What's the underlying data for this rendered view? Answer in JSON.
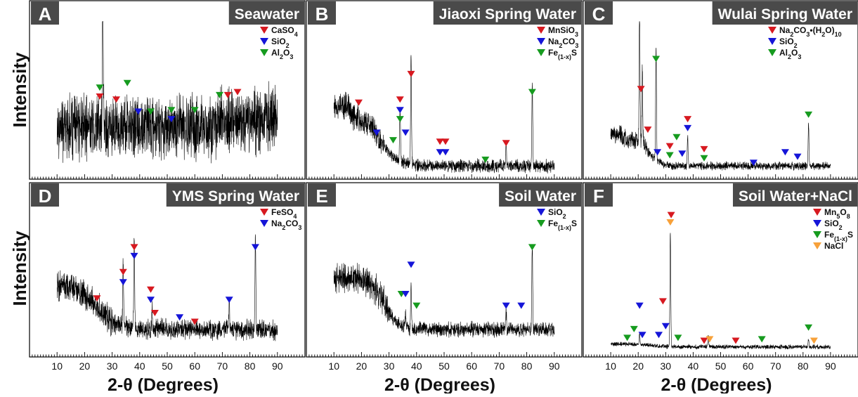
{
  "figure": {
    "y_label": "Intensity",
    "x_label": "2-θ (Degrees)"
  },
  "colors": {
    "red": "#d71920",
    "blue": "#1515d8",
    "green": "#169b1f",
    "orange": "#f7a13a"
  },
  "chart_data": [
    {
      "letter": "A",
      "title": "Seawater",
      "type": "line",
      "xlabel": "2-θ (Degrees)",
      "ylabel": "Intensity",
      "xlim": [
        0,
        100
      ],
      "xticks": [],
      "legend": [
        {
          "label": "CaSO",
          "sub": "4",
          "after": "",
          "color": "red"
        },
        {
          "label": "SiO",
          "sub": "2",
          "after": "",
          "color": "blue"
        },
        {
          "label": "Al",
          "sub": "2",
          "after": "O",
          "sub2": "3",
          "color": "green"
        }
      ],
      "peaks": [
        [
          26.6,
          0.95
        ]
      ],
      "markers": [
        {
          "x": 25.5,
          "y": 0.5,
          "color": "red"
        },
        {
          "x": 25.5,
          "y": 0.56,
          "color": "green"
        },
        {
          "x": 31.5,
          "y": 0.48,
          "color": "red"
        },
        {
          "x": 35.5,
          "y": 0.59,
          "color": "green"
        },
        {
          "x": 39.5,
          "y": 0.4,
          "color": "blue"
        },
        {
          "x": 44.0,
          "y": 0.4,
          "color": "green"
        },
        {
          "x": 51.5,
          "y": 0.41,
          "color": "green"
        },
        {
          "x": 51.5,
          "y": 0.35,
          "color": "blue"
        },
        {
          "x": 60.0,
          "y": 0.41,
          "color": "green"
        },
        {
          "x": 69.0,
          "y": 0.51,
          "color": "green"
        },
        {
          "x": 72.0,
          "y": 0.51,
          "color": "red"
        },
        {
          "x": 75.5,
          "y": 0.53,
          "color": "red"
        }
      ]
    },
    {
      "letter": "B",
      "title": "Jiaoxi Spring Water",
      "type": "line",
      "xlabel": "2-θ (Degrees)",
      "ylabel": "",
      "xlim": [
        0,
        100
      ],
      "xticks": [
        10,
        20,
        30,
        40,
        50,
        60,
        70,
        80,
        90
      ],
      "legend": [
        {
          "label": "MnSiO",
          "sub": "3",
          "after": "",
          "color": "red"
        },
        {
          "label": "Na",
          "sub": "2",
          "after": "CO",
          "sub2": "3",
          "color": "blue"
        },
        {
          "label": "Fe",
          "sub": "(1-x)",
          "after": "S",
          "color": "green"
        }
      ],
      "peaks": [
        [
          38,
          0.75
        ],
        [
          82,
          0.55
        ],
        [
          34,
          0.35
        ],
        [
          72.5,
          0.15
        ]
      ],
      "markers": [
        {
          "x": 19.0,
          "y": 0.46,
          "color": "red"
        },
        {
          "x": 25.5,
          "y": 0.26,
          "color": "blue"
        },
        {
          "x": 31.5,
          "y": 0.21,
          "color": "green"
        },
        {
          "x": 34.0,
          "y": 0.48,
          "color": "red"
        },
        {
          "x": 34.0,
          "y": 0.41,
          "color": "blue"
        },
        {
          "x": 34.0,
          "y": 0.35,
          "color": "green"
        },
        {
          "x": 36.0,
          "y": 0.26,
          "color": "blue"
        },
        {
          "x": 38.0,
          "y": 0.65,
          "color": "red"
        },
        {
          "x": 48.5,
          "y": 0.2,
          "color": "red"
        },
        {
          "x": 50.5,
          "y": 0.2,
          "color": "red"
        },
        {
          "x": 48.5,
          "y": 0.13,
          "color": "blue"
        },
        {
          "x": 50.5,
          "y": 0.13,
          "color": "blue"
        },
        {
          "x": 65.0,
          "y": 0.08,
          "color": "green"
        },
        {
          "x": 72.5,
          "y": 0.19,
          "color": "red"
        },
        {
          "x": 82.0,
          "y": 0.53,
          "color": "green"
        }
      ]
    },
    {
      "letter": "C",
      "title": "Wulai Spring Water",
      "type": "line",
      "xlabel": "2-θ (Degrees)",
      "ylabel": "",
      "xlim": [
        0,
        100
      ],
      "xticks": [],
      "legend": [
        {
          "label": "Na",
          "sub": "2",
          "after": "CO",
          "sub2": "3",
          "after2": "•(H",
          "sub3": "2",
          "after3": "O)",
          "sub4": "10",
          "color": "red"
        },
        {
          "label": "SiO",
          "sub": "2",
          "after": "",
          "color": "blue"
        },
        {
          "label": "Al",
          "sub": "2",
          "after": "O",
          "sub2": "3",
          "color": "green"
        }
      ],
      "peaks": [
        [
          20.5,
          0.9
        ],
        [
          26.5,
          0.75
        ],
        [
          21.5,
          0.5
        ],
        [
          82,
          0.28
        ],
        [
          38,
          0.2
        ]
      ],
      "markers": [
        {
          "x": 21.0,
          "y": 0.55,
          "color": "red"
        },
        {
          "x": 23.5,
          "y": 0.28,
          "color": "red"
        },
        {
          "x": 26.5,
          "y": 0.75,
          "color": "green"
        },
        {
          "x": 27.0,
          "y": 0.13,
          "color": "blue"
        },
        {
          "x": 31.5,
          "y": 0.17,
          "color": "red"
        },
        {
          "x": 31.5,
          "y": 0.11,
          "color": "green"
        },
        {
          "x": 34.0,
          "y": 0.23,
          "color": "green"
        },
        {
          "x": 36.0,
          "y": 0.12,
          "color": "blue"
        },
        {
          "x": 38.0,
          "y": 0.35,
          "color": "red"
        },
        {
          "x": 38.0,
          "y": 0.29,
          "color": "blue"
        },
        {
          "x": 44.0,
          "y": 0.15,
          "color": "red"
        },
        {
          "x": 44.0,
          "y": 0.09,
          "color": "green"
        },
        {
          "x": 62.0,
          "y": 0.06,
          "color": "blue"
        },
        {
          "x": 73.5,
          "y": 0.13,
          "color": "blue"
        },
        {
          "x": 78.0,
          "y": 0.1,
          "color": "blue"
        },
        {
          "x": 82.0,
          "y": 0.38,
          "color": "green"
        }
      ]
    },
    {
      "letter": "D",
      "title": "YMS Spring Water",
      "type": "line",
      "xlabel": "2-θ (Degrees)",
      "ylabel": "Intensity",
      "xlim": [
        0,
        100
      ],
      "xticks": [
        10,
        20,
        30,
        40,
        50,
        60,
        70,
        80,
        90
      ],
      "legend": [
        {
          "label": "FeSO",
          "sub": "4",
          "after": "",
          "color": "red"
        },
        {
          "label": "Na",
          "sub": "2",
          "after": "CO",
          "sub2": "3",
          "color": "blue"
        }
      ],
      "peaks": [
        [
          38,
          0.62
        ],
        [
          34,
          0.42
        ],
        [
          82,
          0.62
        ],
        [
          72.5,
          0.2
        ],
        [
          44.5,
          0.12
        ]
      ],
      "markers": [
        {
          "x": 24.5,
          "y": 0.35,
          "color": "red"
        },
        {
          "x": 34.0,
          "y": 0.53,
          "color": "red"
        },
        {
          "x": 34.0,
          "y": 0.46,
          "color": "blue"
        },
        {
          "x": 38.0,
          "y": 0.7,
          "color": "red"
        },
        {
          "x": 38.0,
          "y": 0.64,
          "color": "blue"
        },
        {
          "x": 44.0,
          "y": 0.41,
          "color": "red"
        },
        {
          "x": 44.0,
          "y": 0.34,
          "color": "blue"
        },
        {
          "x": 45.5,
          "y": 0.25,
          "color": "red"
        },
        {
          "x": 54.5,
          "y": 0.22,
          "color": "blue"
        },
        {
          "x": 60.0,
          "y": 0.19,
          "color": "red"
        },
        {
          "x": 72.5,
          "y": 0.34,
          "color": "blue"
        },
        {
          "x": 82.0,
          "y": 0.7,
          "color": "blue"
        }
      ]
    },
    {
      "letter": "E",
      "title": "Soil Water",
      "type": "line",
      "xlabel": "2-θ (Degrees)",
      "ylabel": "",
      "xlim": [
        0,
        100
      ],
      "xticks": [
        10,
        20,
        30,
        40,
        50,
        60,
        70,
        80,
        90
      ],
      "legend": [
        {
          "label": "SiO",
          "sub": "2",
          "after": "",
          "color": "blue"
        },
        {
          "label": "Fe",
          "sub": "(1-x)",
          "after": "S",
          "color": "green"
        }
      ],
      "peaks": [
        [
          82,
          0.6
        ],
        [
          38,
          0.32
        ],
        [
          72.5,
          0.12
        ],
        [
          36,
          0.1
        ]
      ],
      "markers": [
        {
          "x": 34.5,
          "y": 0.38,
          "color": "green"
        },
        {
          "x": 36.0,
          "y": 0.38,
          "color": "blue"
        },
        {
          "x": 38.0,
          "y": 0.58,
          "color": "blue"
        },
        {
          "x": 40.0,
          "y": 0.3,
          "color": "green"
        },
        {
          "x": 72.5,
          "y": 0.3,
          "color": "blue"
        },
        {
          "x": 78.0,
          "y": 0.3,
          "color": "blue"
        },
        {
          "x": 82.0,
          "y": 0.7,
          "color": "green"
        }
      ]
    },
    {
      "letter": "F",
      "title": "Soil Water+NaCl",
      "type": "line",
      "xlabel": "2-θ (Degrees)",
      "ylabel": "",
      "xlim": [
        0,
        100
      ],
      "xticks": [
        10,
        20,
        30,
        40,
        50,
        60,
        70,
        80,
        90
      ],
      "legend": [
        {
          "label": "Mn",
          "sub": "5",
          "after": "O",
          "sub2": "8",
          "color": "red"
        },
        {
          "label": "SiO",
          "sub": "2",
          "after": "",
          "color": "blue"
        },
        {
          "label": "Fe",
          "sub": "(1-x)",
          "after": "S",
          "color": "green"
        },
        {
          "label": "NaCl",
          "sub": "",
          "after": "",
          "color": "orange"
        }
      ],
      "peaks": [
        [
          31.7,
          0.78
        ],
        [
          45.5,
          0.08
        ],
        [
          20.5,
          0.08
        ],
        [
          82,
          0.05
        ]
      ],
      "markers": [
        {
          "x": 16.0,
          "y": 0.08,
          "color": "green"
        },
        {
          "x": 18.5,
          "y": 0.14,
          "color": "green"
        },
        {
          "x": 20.5,
          "y": 0.3,
          "color": "blue"
        },
        {
          "x": 21.5,
          "y": 0.1,
          "color": "blue"
        },
        {
          "x": 27.5,
          "y": 0.1,
          "color": "blue"
        },
        {
          "x": 29.0,
          "y": 0.33,
          "color": "red"
        },
        {
          "x": 30.0,
          "y": 0.16,
          "color": "blue"
        },
        {
          "x": 31.7,
          "y": 0.87,
          "color": "orange"
        },
        {
          "x": 32.0,
          "y": 0.92,
          "color": "red"
        },
        {
          "x": 34.5,
          "y": 0.08,
          "color": "green"
        },
        {
          "x": 44.0,
          "y": 0.06,
          "color": "red"
        },
        {
          "x": 46.0,
          "y": 0.07,
          "color": "orange"
        },
        {
          "x": 55.5,
          "y": 0.06,
          "color": "red"
        },
        {
          "x": 65.0,
          "y": 0.07,
          "color": "green"
        },
        {
          "x": 82.0,
          "y": 0.15,
          "color": "green"
        },
        {
          "x": 84.0,
          "y": 0.06,
          "color": "orange"
        }
      ]
    }
  ]
}
